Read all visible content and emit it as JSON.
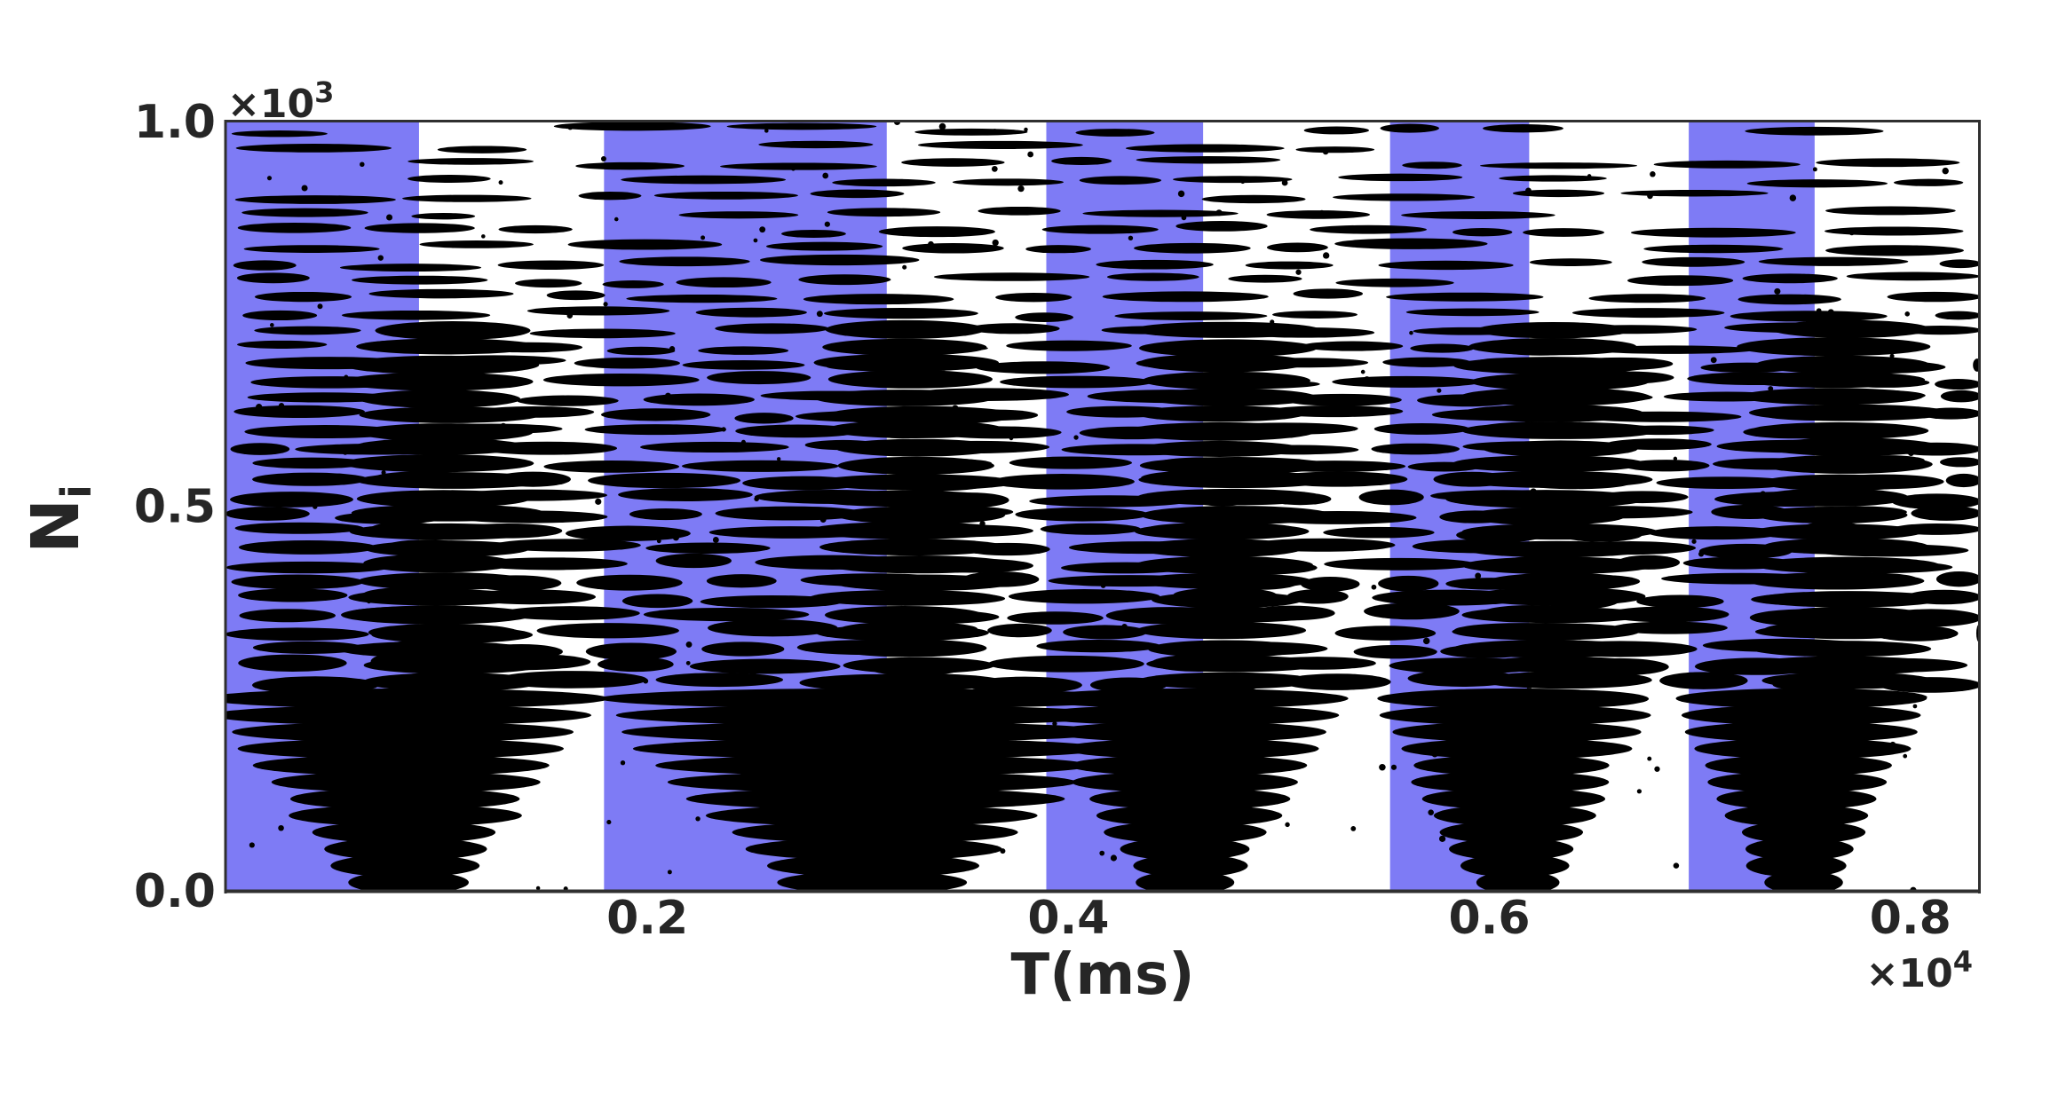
{
  "chart_data": {
    "type": "scatter",
    "variant": "spike-raster",
    "title": "",
    "xlabel": "T(ms)",
    "ylabel": {
      "base": "N",
      "subscript": "i"
    },
    "x_offset": {
      "base": "×10",
      "exponent": "4"
    },
    "y_offset": {
      "base": "×10",
      "exponent": "3"
    },
    "xlim_ms": [
      0,
      8330
    ],
    "ylim_neurons": [
      0,
      1000
    ],
    "xticks": {
      "values_ms": [
        2000,
        4000,
        6000,
        8000
      ],
      "labels": [
        "0.2",
        "0.4",
        "0.6",
        "0.8"
      ]
    },
    "yticks": {
      "values_neurons": [
        0,
        500,
        1000
      ],
      "labels": [
        "0.0",
        "0.5",
        "1.0"
      ]
    },
    "grid": false,
    "legend": null,
    "stimulus_windows_ms": [
      [
        0,
        915
      ],
      [
        1794,
        3137
      ],
      [
        3895,
        4640
      ],
      [
        5528,
        6189
      ],
      [
        6947,
        7545
      ]
    ],
    "stimulus_offsets_ms": [
      915,
      3137,
      4640,
      6189,
      7545
    ],
    "colors": {
      "background": "#ffffff",
      "stimulus_band": "#7e7bf5",
      "spikes": "#000000",
      "axis": "#2f2f2f",
      "text": "#262626"
    },
    "raster": {
      "n_neurons": 1000,
      "n_clusters": 46,
      "fan": {
        "rows": 12,
        "n_max": 260,
        "center_shift_ms": -70,
        "half_width_base_frac": 0.32,
        "half_width_growth_frac": 0.062
      },
      "dense_column_ms_after_offset": [
        -290,
        540
      ],
      "dense_column_n_range": [
        240,
        740
      ]
    }
  }
}
